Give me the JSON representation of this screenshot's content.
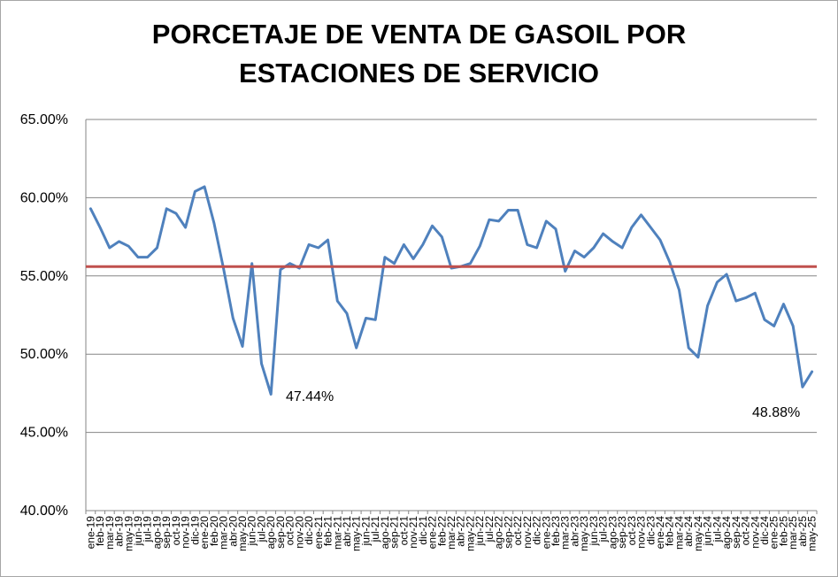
{
  "chart_data": {
    "type": "line",
    "title_line1": "PORCETAJE DE VENTA DE GASOIL POR",
    "title_line2": "ESTACIONES DE SERVICIO",
    "xlabel": "",
    "ylabel": "",
    "ylim": [
      40,
      65
    ],
    "yticks": [
      "65.00%",
      "60.00%",
      "55.00%",
      "50.00%",
      "45.00%",
      "40.00%"
    ],
    "ytick_values": [
      65,
      60,
      55,
      50,
      45,
      40
    ],
    "grid": true,
    "legend": "none",
    "categories": [
      "ene-19",
      "feb-19",
      "mar-19",
      "abr-19",
      "may-19",
      "jun-19",
      "jul-19",
      "ago-19",
      "sep-19",
      "oct-19",
      "nov-19",
      "dic-19",
      "ene-20",
      "feb-20",
      "mar-20",
      "abr-20",
      "may-20",
      "jun-20",
      "jul-20",
      "ago-20",
      "sep-20",
      "oct-20",
      "nov-20",
      "dic-20",
      "ene-21",
      "feb-21",
      "mar-21",
      "abr-21",
      "may-21",
      "jun-21",
      "jul-21",
      "ago-21",
      "sep-21",
      "oct-21",
      "nov-21",
      "dic-21",
      "ene-22",
      "feb-22",
      "mar-22",
      "abr-22",
      "may-22",
      "jun-22",
      "jul-22",
      "ago-22",
      "sep-22",
      "oct-22",
      "nov-22",
      "dic-22",
      "ene-23",
      "feb-23",
      "mar-23",
      "abr-23",
      "may-23",
      "jun-23",
      "jul-23",
      "ago-23",
      "sep-23",
      "oct-23",
      "nov-23",
      "dic-23",
      "ene-24",
      "feb-24",
      "mar-24",
      "abr-24",
      "may-24",
      "jun-24",
      "jul-24",
      "ago-24",
      "sep-24",
      "oct-24",
      "nov-24",
      "dic-24",
      "ene-25",
      "feb-25",
      "mar-25",
      "abr-25",
      "may-25"
    ],
    "series": [
      {
        "color": "#4f81bd",
        "values": [
          59.3,
          58.1,
          56.8,
          57.2,
          56.9,
          56.2,
          56.2,
          56.8,
          59.3,
          59.0,
          58.1,
          60.4,
          60.7,
          58.4,
          55.5,
          52.3,
          50.5,
          55.8,
          49.4,
          47.44,
          55.4,
          55.8,
          55.5,
          57.0,
          56.8,
          57.3,
          53.4,
          52.6,
          50.4,
          52.3,
          52.2,
          56.2,
          55.8,
          57.0,
          56.1,
          57.0,
          58.2,
          57.5,
          55.5,
          55.6,
          55.8,
          56.9,
          58.6,
          58.5,
          59.2,
          59.2,
          57.0,
          56.8,
          58.5,
          58.0,
          55.3,
          56.6,
          56.2,
          56.8,
          57.7,
          57.2,
          56.8,
          58.1,
          58.9,
          58.1,
          57.3,
          55.9,
          54.1,
          50.4,
          49.8,
          53.1,
          54.6,
          55.1,
          53.4,
          53.6,
          53.9,
          52.2,
          51.8,
          53.2,
          51.8,
          47.9,
          48.88
        ]
      },
      {
        "color": "#c0504d",
        "values": "constant",
        "constant_value": 55.6
      }
    ],
    "annotations": [
      {
        "index": 19,
        "text": "47.44%"
      },
      {
        "index": 76,
        "text": "48.88%"
      }
    ]
  }
}
